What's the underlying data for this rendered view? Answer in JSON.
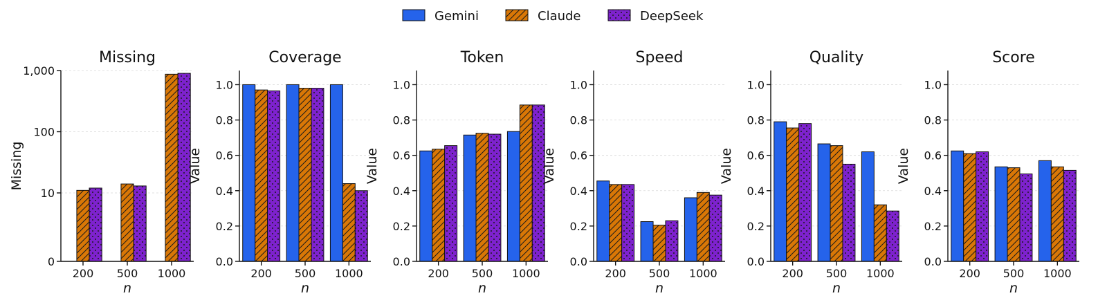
{
  "legend": {
    "placement": "top-center",
    "entries": [
      {
        "name": "Gemini",
        "color": "#2563eb",
        "pattern": "solid"
      },
      {
        "name": "Claude",
        "color": "#d97706",
        "pattern": "hatch"
      },
      {
        "name": "DeepSeek",
        "color": "#7e22ce",
        "pattern": "dots"
      }
    ]
  },
  "chart_data": [
    {
      "type": "bar",
      "title": "Missing",
      "xlabel": "n",
      "ylabel": "Missing",
      "scale": "symlog",
      "categories": [
        "200",
        "500",
        "1000"
      ],
      "yticks": [
        0,
        10,
        100,
        1000
      ],
      "ytick_labels": [
        "0",
        "10",
        "100",
        "1,000"
      ],
      "ylim": [
        0,
        1000
      ],
      "grid": true,
      "series": [
        {
          "name": "Gemini",
          "values": [
            0,
            0,
            0
          ]
        },
        {
          "name": "Claude",
          "values": [
            11,
            14,
            870
          ]
        },
        {
          "name": "DeepSeek",
          "values": [
            12,
            13,
            900
          ]
        }
      ]
    },
    {
      "type": "bar",
      "title": "Coverage",
      "xlabel": "n",
      "ylabel": "Value",
      "scale": "linear",
      "categories": [
        "200",
        "500",
        "1000"
      ],
      "yticks": [
        0.0,
        0.2,
        0.4,
        0.6,
        0.8,
        1.0
      ],
      "ytick_labels": [
        "0.0",
        "0.2",
        "0.4",
        "0.6",
        "0.8",
        "1.0"
      ],
      "ylim": [
        0,
        1.08
      ],
      "grid": true,
      "series": [
        {
          "name": "Gemini",
          "values": [
            1.0,
            1.0,
            1.0
          ]
        },
        {
          "name": "Claude",
          "values": [
            0.97,
            0.98,
            0.44
          ]
        },
        {
          "name": "DeepSeek",
          "values": [
            0.965,
            0.98,
            0.4
          ]
        }
      ]
    },
    {
      "type": "bar",
      "title": "Token",
      "xlabel": "n",
      "ylabel": "Value",
      "scale": "linear",
      "categories": [
        "200",
        "500",
        "1000"
      ],
      "yticks": [
        0.0,
        0.2,
        0.4,
        0.6,
        0.8,
        1.0
      ],
      "ytick_labels": [
        "0.0",
        "0.2",
        "0.4",
        "0.6",
        "0.8",
        "1.0"
      ],
      "ylim": [
        0,
        1.08
      ],
      "grid": true,
      "series": [
        {
          "name": "Gemini",
          "values": [
            0.625,
            0.715,
            0.735
          ]
        },
        {
          "name": "Claude",
          "values": [
            0.635,
            0.725,
            0.885
          ]
        },
        {
          "name": "DeepSeek",
          "values": [
            0.655,
            0.72,
            0.885
          ]
        }
      ]
    },
    {
      "type": "bar",
      "title": "Speed",
      "xlabel": "n",
      "ylabel": "Value",
      "scale": "linear",
      "categories": [
        "200",
        "500",
        "1000"
      ],
      "yticks": [
        0.0,
        0.2,
        0.4,
        0.6,
        0.8,
        1.0
      ],
      "ytick_labels": [
        "0.0",
        "0.2",
        "0.4",
        "0.6",
        "0.8",
        "1.0"
      ],
      "ylim": [
        0,
        1.08
      ],
      "grid": true,
      "series": [
        {
          "name": "Gemini",
          "values": [
            0.455,
            0.225,
            0.36
          ]
        },
        {
          "name": "Claude",
          "values": [
            0.435,
            0.205,
            0.39
          ]
        },
        {
          "name": "DeepSeek",
          "values": [
            0.435,
            0.23,
            0.375
          ]
        }
      ]
    },
    {
      "type": "bar",
      "title": "Quality",
      "xlabel": "n",
      "ylabel": "Value",
      "scale": "linear",
      "categories": [
        "200",
        "500",
        "1000"
      ],
      "yticks": [
        0.0,
        0.2,
        0.4,
        0.6,
        0.8,
        1.0
      ],
      "ytick_labels": [
        "0.0",
        "0.2",
        "0.4",
        "0.6",
        "0.8",
        "1.0"
      ],
      "ylim": [
        0,
        1.08
      ],
      "grid": true,
      "series": [
        {
          "name": "Gemini",
          "values": [
            0.79,
            0.665,
            0.62
          ]
        },
        {
          "name": "Claude",
          "values": [
            0.755,
            0.655,
            0.32
          ]
        },
        {
          "name": "DeepSeek",
          "values": [
            0.78,
            0.55,
            0.285
          ]
        }
      ]
    },
    {
      "type": "bar",
      "title": "Score",
      "xlabel": "n",
      "ylabel": "Value",
      "scale": "linear",
      "categories": [
        "200",
        "500",
        "1000"
      ],
      "yticks": [
        0.0,
        0.2,
        0.4,
        0.6,
        0.8,
        1.0
      ],
      "ytick_labels": [
        "0.0",
        "0.2",
        "0.4",
        "0.6",
        "0.8",
        "1.0"
      ],
      "ylim": [
        0,
        1.08
      ],
      "grid": true,
      "series": [
        {
          "name": "Gemini",
          "values": [
            0.625,
            0.535,
            0.57
          ]
        },
        {
          "name": "Claude",
          "values": [
            0.61,
            0.53,
            0.535
          ]
        },
        {
          "name": "DeepSeek",
          "values": [
            0.62,
            0.495,
            0.515
          ]
        }
      ]
    }
  ]
}
